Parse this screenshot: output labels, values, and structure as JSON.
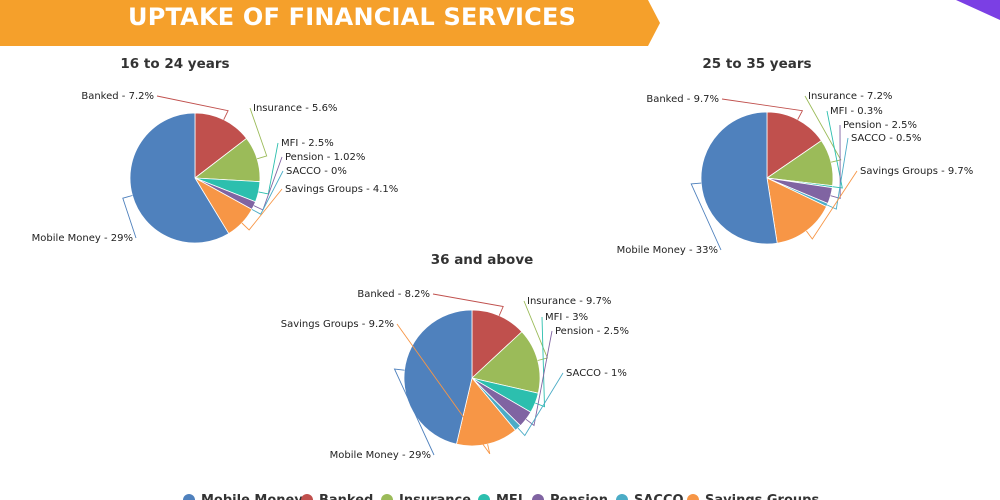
{
  "banner": {
    "title": "UPTAKE OF FINANCIAL SERVICES"
  },
  "colors": {
    "banner": "#f5a02b",
    "Mobile Money": "#4f81bd",
    "Banked": "#c0504d",
    "Insurance": "#9bbb59",
    "MFI": "#2cbfae",
    "Pension": "#8064a2",
    "SACCO": "#4bacc6",
    "Savings Groups": "#f79646"
  },
  "legend": [
    "Mobile Money",
    "Banked",
    "Insurance",
    "MFI",
    "Pension",
    "SACCO",
    "Savings Groups"
  ],
  "chart_data": [
    {
      "type": "pie",
      "title": "16 to 24 years",
      "categories": [
        "Banked",
        "Insurance",
        "MFI",
        "Pension",
        "SACCO",
        "Savings Groups",
        "Mobile Money"
      ],
      "values": [
        7.2,
        5.6,
        2.5,
        1.02,
        0,
        4.1,
        29
      ],
      "labels": [
        "Banked - 7.2%",
        "Insurance - 5.6%",
        "MFI - 2.5%",
        "Pension - 1.02%",
        "SACCO - 0%",
        "Savings Groups - 4.1%",
        "Mobile Money - 29%"
      ]
    },
    {
      "type": "pie",
      "title": "25 to 35 years",
      "categories": [
        "Banked",
        "Insurance",
        "MFI",
        "Pension",
        "SACCO",
        "Savings Groups",
        "Mobile Money"
      ],
      "values": [
        9.7,
        7.2,
        0.3,
        2.5,
        0.5,
        9.7,
        33
      ],
      "labels": [
        "Banked - 9.7%",
        "Insurance - 7.2%",
        "MFI - 0.3%",
        "Pension - 2.5%",
        "SACCO - 0.5%",
        "Savings Groups - 9.7%",
        "Mobile Money - 33%"
      ]
    },
    {
      "type": "pie",
      "title": "36 and above",
      "categories": [
        "Banked",
        "Insurance",
        "MFI",
        "Pension",
        "SACCO",
        "Savings Groups",
        "Mobile Money"
      ],
      "values": [
        8.2,
        9.7,
        3,
        2.5,
        1,
        9.2,
        29
      ],
      "labels": [
        "Banked - 8.2%",
        "Insurance - 9.7%",
        "MFI - 3%",
        "Pension - 2.5%",
        "SACCO - 1%",
        "Savings Groups - 9.2%",
        "Mobile Money - 29%"
      ]
    }
  ]
}
